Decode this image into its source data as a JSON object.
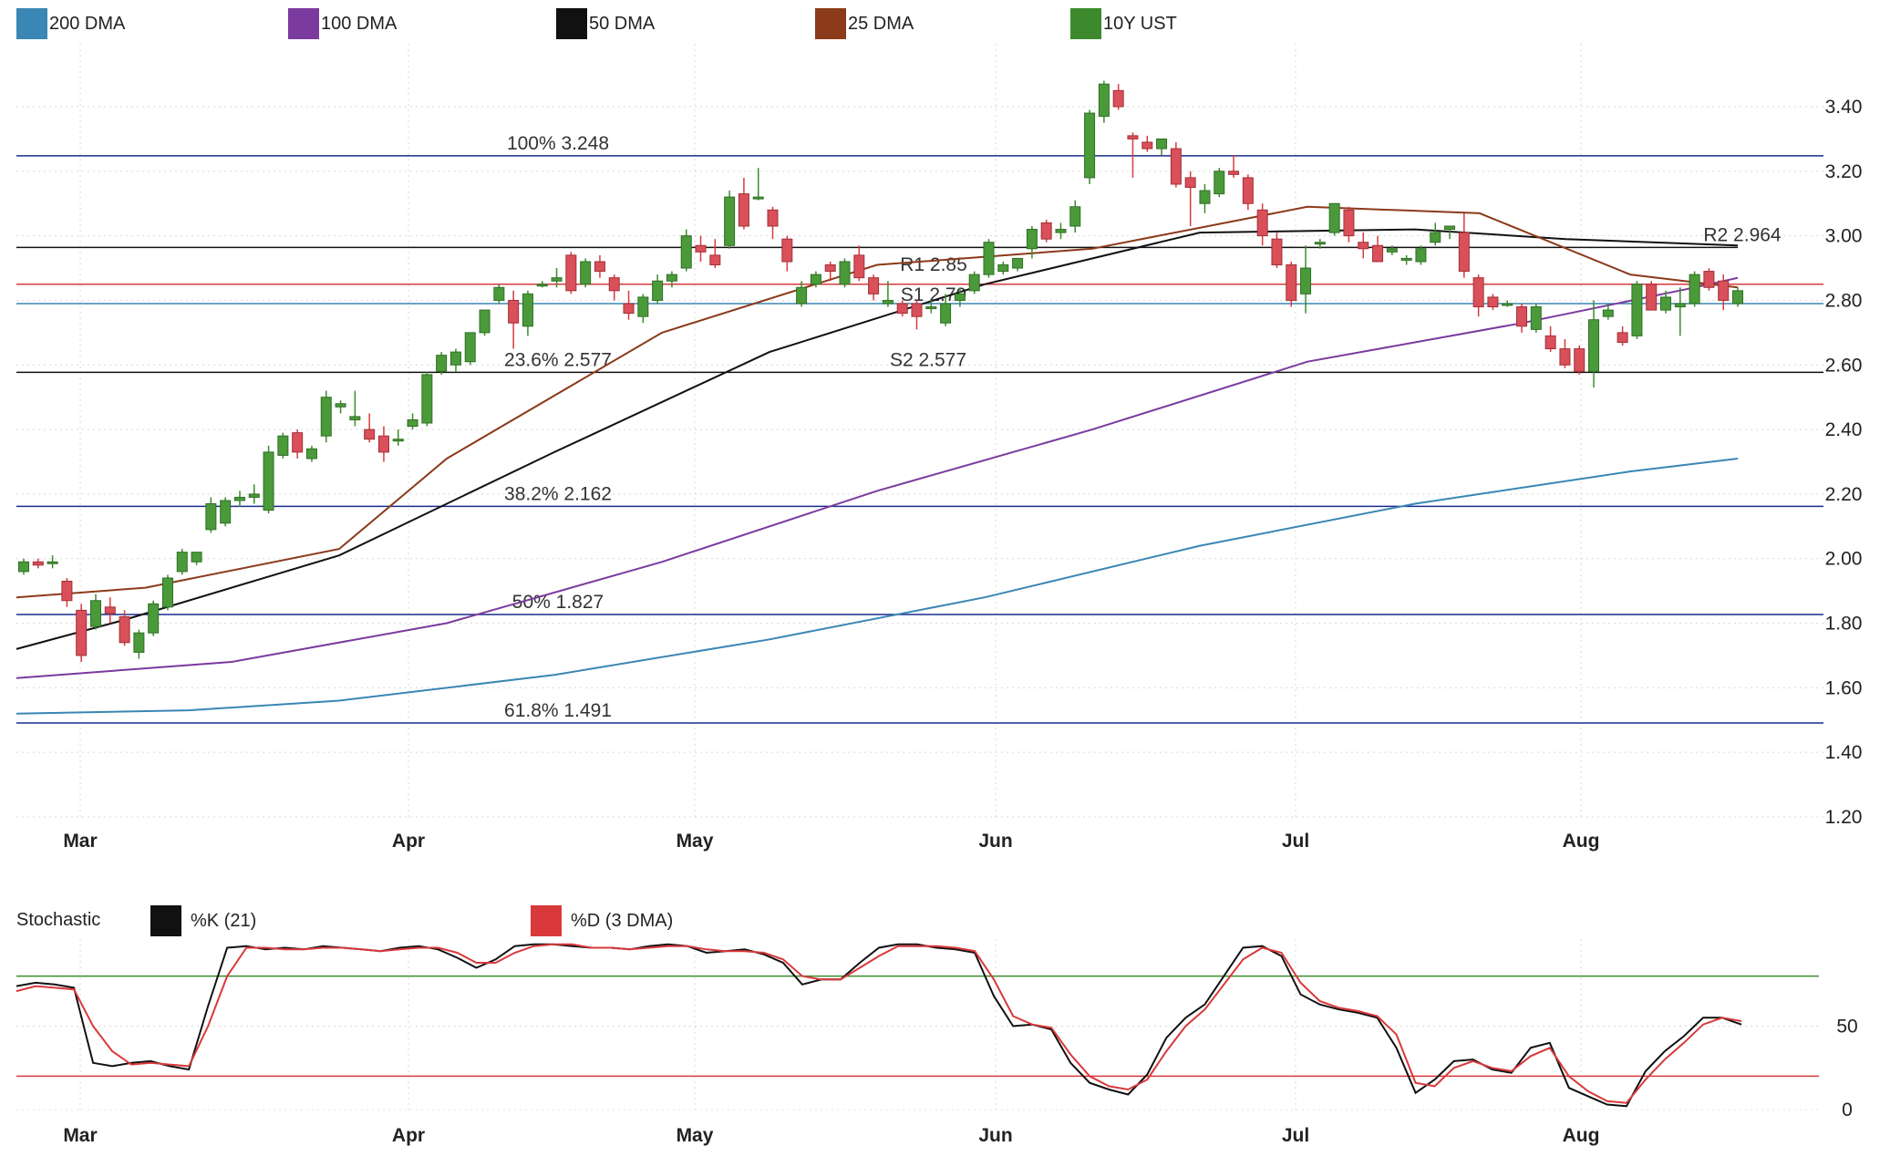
{
  "legend": [
    {
      "label": "200 DMA",
      "color": "#3a86b4"
    },
    {
      "label": "100 DMA",
      "color": "#7b3a9e"
    },
    {
      "label": "50 DMA",
      "color": "#111111"
    },
    {
      "label": "25 DMA",
      "color": "#8b3a1a"
    },
    {
      "label": "10Y UST",
      "color": "#3d8a2e"
    }
  ],
  "stoch_legend": {
    "title": "Stochastic",
    "items": [
      {
        "label": "%K (21)",
        "color": "#111111"
      },
      {
        "label": "%D (3 DMA)",
        "color": "#d9393b"
      }
    ]
  },
  "chart_data": [
    {
      "type": "candlestick",
      "series_name": "10Y UST",
      "x_axis_months": [
        "Mar",
        "Apr",
        "May",
        "Jun",
        "Jul",
        "Aug"
      ],
      "y_ticks": [
        "1.20",
        "1.40",
        "1.60",
        "1.80",
        "2.00",
        "2.20",
        "2.40",
        "2.60",
        "2.80",
        "3.00",
        "3.20",
        "3.40"
      ],
      "ylim": [
        1.2,
        3.5
      ],
      "grid": true,
      "reference_lines": [
        {
          "label": "100% 3.248",
          "value": 3.248,
          "color": "#1a2c8c"
        },
        {
          "label": "23.6% 2.577",
          "value": 2.577,
          "color": "#111111"
        },
        {
          "label": "38.2% 2.162",
          "value": 2.162,
          "color": "#1a2c8c"
        },
        {
          "label": "50% 1.827",
          "value": 1.827,
          "color": "#1a2c8c"
        },
        {
          "label": "61.8% 1.491",
          "value": 1.491,
          "color": "#1a2c8c"
        },
        {
          "label": "R1 2.85",
          "value": 2.85,
          "color": "#d9393b"
        },
        {
          "label": "S1 2.79",
          "value": 2.79,
          "color": "#3a86b4"
        },
        {
          "label": "S2 2.577",
          "value": 2.577,
          "color": "#111111"
        },
        {
          "label": "R2 2.964",
          "value": 2.964,
          "color": "#111111"
        }
      ],
      "candles": [
        [
          1.96,
          2.0,
          1.95,
          1.99
        ],
        [
          1.99,
          2.0,
          1.97,
          1.98
        ],
        [
          1.99,
          2.01,
          1.97,
          1.99
        ],
        [
          1.93,
          1.94,
          1.85,
          1.87
        ],
        [
          1.84,
          1.86,
          1.68,
          1.7
        ],
        [
          1.79,
          1.89,
          1.78,
          1.87
        ],
        [
          1.85,
          1.88,
          1.8,
          1.83
        ],
        [
          1.82,
          1.84,
          1.73,
          1.74
        ],
        [
          1.71,
          1.78,
          1.69,
          1.77
        ],
        [
          1.77,
          1.87,
          1.76,
          1.86
        ],
        [
          1.85,
          1.95,
          1.84,
          1.94
        ],
        [
          1.96,
          2.03,
          1.95,
          2.02
        ],
        [
          1.99,
          2.02,
          1.98,
          2.02
        ],
        [
          2.09,
          2.19,
          2.08,
          2.17
        ],
        [
          2.11,
          2.19,
          2.1,
          2.18
        ],
        [
          2.18,
          2.21,
          2.16,
          2.19
        ],
        [
          2.19,
          2.23,
          2.17,
          2.2
        ],
        [
          2.15,
          2.35,
          2.14,
          2.33
        ],
        [
          2.32,
          2.39,
          2.31,
          2.38
        ],
        [
          2.39,
          2.4,
          2.31,
          2.33
        ],
        [
          2.31,
          2.35,
          2.3,
          2.34
        ],
        [
          2.38,
          2.52,
          2.36,
          2.5
        ],
        [
          2.47,
          2.49,
          2.45,
          2.48
        ],
        [
          2.43,
          2.52,
          2.41,
          2.44
        ],
        [
          2.4,
          2.45,
          2.36,
          2.37
        ],
        [
          2.38,
          2.41,
          2.3,
          2.33
        ],
        [
          2.37,
          2.4,
          2.35,
          2.37
        ],
        [
          2.41,
          2.45,
          2.4,
          2.43
        ],
        [
          2.42,
          2.58,
          2.41,
          2.57
        ],
        [
          2.58,
          2.64,
          2.57,
          2.63
        ],
        [
          2.6,
          2.65,
          2.58,
          2.64
        ],
        [
          2.61,
          2.7,
          2.6,
          2.7
        ],
        [
          2.7,
          2.77,
          2.69,
          2.77
        ],
        [
          2.8,
          2.85,
          2.79,
          2.84
        ],
        [
          2.8,
          2.83,
          2.65,
          2.73
        ],
        [
          2.72,
          2.83,
          2.69,
          2.82
        ],
        [
          2.85,
          2.86,
          2.84,
          2.85
        ],
        [
          2.86,
          2.9,
          2.84,
          2.87
        ],
        [
          2.94,
          2.95,
          2.82,
          2.83
        ],
        [
          2.85,
          2.93,
          2.84,
          2.92
        ],
        [
          2.92,
          2.94,
          2.87,
          2.89
        ],
        [
          2.87,
          2.88,
          2.8,
          2.83
        ],
        [
          2.79,
          2.83,
          2.74,
          2.76
        ],
        [
          2.75,
          2.82,
          2.73,
          2.81
        ],
        [
          2.8,
          2.88,
          2.79,
          2.86
        ],
        [
          2.86,
          2.89,
          2.84,
          2.88
        ],
        [
          2.9,
          3.02,
          2.89,
          3.0
        ],
        [
          2.97,
          3.0,
          2.92,
          2.95
        ],
        [
          2.94,
          2.99,
          2.9,
          2.91
        ],
        [
          2.97,
          3.14,
          2.96,
          3.12
        ],
        [
          3.13,
          3.18,
          3.02,
          3.03
        ],
        [
          3.12,
          3.21,
          3.11,
          3.12
        ],
        [
          3.08,
          3.09,
          2.99,
          3.03
        ],
        [
          2.99,
          3.0,
          2.89,
          2.92
        ],
        [
          2.79,
          2.86,
          2.78,
          2.84
        ],
        [
          2.85,
          2.89,
          2.84,
          2.88
        ],
        [
          2.91,
          2.92,
          2.86,
          2.89
        ],
        [
          2.85,
          2.93,
          2.84,
          2.92
        ],
        [
          2.94,
          2.97,
          2.86,
          2.87
        ],
        [
          2.87,
          2.88,
          2.8,
          2.82
        ],
        [
          2.79,
          2.86,
          2.78,
          2.8
        ],
        [
          2.79,
          2.8,
          2.75,
          2.76
        ],
        [
          2.79,
          2.8,
          2.71,
          2.75
        ],
        [
          2.78,
          2.8,
          2.76,
          2.78
        ],
        [
          2.73,
          2.82,
          2.72,
          2.79
        ],
        [
          2.8,
          2.84,
          2.78,
          2.82
        ],
        [
          2.83,
          2.89,
          2.82,
          2.88
        ],
        [
          2.88,
          2.99,
          2.87,
          2.98
        ],
        [
          2.89,
          2.92,
          2.88,
          2.91
        ],
        [
          2.9,
          2.93,
          2.89,
          2.93
        ],
        [
          2.96,
          3.03,
          2.93,
          3.02
        ],
        [
          3.04,
          3.05,
          2.98,
          2.99
        ],
        [
          3.01,
          3.04,
          2.99,
          3.02
        ],
        [
          3.03,
          3.11,
          3.01,
          3.09
        ],
        [
          3.18,
          3.39,
          3.16,
          3.38
        ],
        [
          3.37,
          3.48,
          3.35,
          3.47
        ],
        [
          3.45,
          3.47,
          3.39,
          3.4
        ],
        [
          3.31,
          3.32,
          3.18,
          3.3
        ],
        [
          3.29,
          3.31,
          3.26,
          3.27
        ],
        [
          3.27,
          3.3,
          3.25,
          3.3
        ],
        [
          3.27,
          3.29,
          3.15,
          3.16
        ],
        [
          3.18,
          3.2,
          3.03,
          3.15
        ],
        [
          3.1,
          3.16,
          3.07,
          3.14
        ],
        [
          3.13,
          3.21,
          3.12,
          3.2
        ],
        [
          3.2,
          3.25,
          3.18,
          3.19
        ],
        [
          3.18,
          3.19,
          3.08,
          3.1
        ],
        [
          3.08,
          3.1,
          2.97,
          3.0
        ],
        [
          2.99,
          3.01,
          2.9,
          2.91
        ],
        [
          2.91,
          2.92,
          2.78,
          2.8
        ],
        [
          2.82,
          2.97,
          2.76,
          2.9
        ],
        [
          2.98,
          2.99,
          2.96,
          2.98
        ],
        [
          3.01,
          3.1,
          3.0,
          3.1
        ],
        [
          3.08,
          3.09,
          2.98,
          3.0
        ],
        [
          2.98,
          3.01,
          2.93,
          2.96
        ],
        [
          2.97,
          3.0,
          2.92,
          2.92
        ],
        [
          2.95,
          2.97,
          2.94,
          2.96
        ],
        [
          2.93,
          2.94,
          2.91,
          2.93
        ],
        [
          2.92,
          2.97,
          2.91,
          2.96
        ],
        [
          2.98,
          3.04,
          2.97,
          3.01
        ],
        [
          3.02,
          3.03,
          2.99,
          3.03
        ],
        [
          3.01,
          3.07,
          2.87,
          2.89
        ],
        [
          2.87,
          2.88,
          2.75,
          2.78
        ],
        [
          2.81,
          2.82,
          2.77,
          2.78
        ],
        [
          2.79,
          2.8,
          2.78,
          2.79
        ],
        [
          2.78,
          2.79,
          2.7,
          2.72
        ],
        [
          2.71,
          2.79,
          2.7,
          2.78
        ],
        [
          2.69,
          2.72,
          2.64,
          2.65
        ],
        [
          2.65,
          2.68,
          2.59,
          2.6
        ],
        [
          2.65,
          2.66,
          2.57,
          2.58
        ],
        [
          2.58,
          2.8,
          2.53,
          2.74
        ],
        [
          2.75,
          2.79,
          2.74,
          2.77
        ],
        [
          2.7,
          2.72,
          2.66,
          2.67
        ],
        [
          2.69,
          2.86,
          2.68,
          2.85
        ],
        [
          2.85,
          2.86,
          2.77,
          2.77
        ],
        [
          2.77,
          2.83,
          2.76,
          2.81
        ],
        [
          2.78,
          2.84,
          2.69,
          2.79
        ],
        [
          2.79,
          2.89,
          2.78,
          2.88
        ],
        [
          2.89,
          2.9,
          2.83,
          2.84
        ],
        [
          2.86,
          2.88,
          2.77,
          2.8
        ],
        [
          2.79,
          2.84,
          2.78,
          2.83
        ]
      ],
      "moving_averages": {
        "200 DMA": [
          [
            0,
            1.52
          ],
          [
            0.08,
            1.53
          ],
          [
            0.15,
            1.56
          ],
          [
            0.25,
            1.64
          ],
          [
            0.35,
            1.75
          ],
          [
            0.45,
            1.88
          ],
          [
            0.55,
            2.04
          ],
          [
            0.65,
            2.17
          ],
          [
            0.75,
            2.27
          ],
          [
            0.8,
            2.31
          ]
        ],
        "100 DMA": [
          [
            0,
            1.63
          ],
          [
            0.1,
            1.68
          ],
          [
            0.2,
            1.8
          ],
          [
            0.3,
            1.99
          ],
          [
            0.4,
            2.21
          ],
          [
            0.5,
            2.4
          ],
          [
            0.6,
            2.61
          ],
          [
            0.7,
            2.73
          ],
          [
            0.78,
            2.84
          ],
          [
            0.8,
            2.87
          ]
        ],
        "50 DMA": [
          [
            0,
            1.72
          ],
          [
            0.05,
            1.81
          ],
          [
            0.15,
            2.01
          ],
          [
            0.25,
            2.33
          ],
          [
            0.35,
            2.64
          ],
          [
            0.45,
            2.85
          ],
          [
            0.55,
            3.01
          ],
          [
            0.65,
            3.02
          ],
          [
            0.72,
            2.99
          ],
          [
            0.8,
            2.97
          ]
        ],
        "25 DMA": [
          [
            0,
            1.88
          ],
          [
            0.06,
            1.91
          ],
          [
            0.15,
            2.03
          ],
          [
            0.2,
            2.31
          ],
          [
            0.3,
            2.7
          ],
          [
            0.4,
            2.91
          ],
          [
            0.5,
            2.96
          ],
          [
            0.6,
            3.09
          ],
          [
            0.68,
            3.07
          ],
          [
            0.75,
            2.88
          ],
          [
            0.8,
            2.84
          ]
        ]
      }
    },
    {
      "type": "line",
      "title": "Stochastic",
      "y_ticks": [
        "0",
        "50"
      ],
      "ylim": [
        0,
        100
      ],
      "overbought": 80,
      "oversold": 20,
      "x_axis_months": [
        "Mar",
        "Apr",
        "May",
        "Jun",
        "Jul",
        "Aug"
      ],
      "series": [
        {
          "name": "%K (21)",
          "values": [
            74,
            76,
            75,
            73,
            28,
            26,
            28,
            29,
            26,
            24,
            62,
            97,
            98,
            96,
            97,
            96,
            98,
            97,
            96,
            95,
            97,
            98,
            96,
            91,
            85,
            90,
            98,
            99,
            99,
            98,
            97,
            97,
            96,
            98,
            99,
            98,
            94,
            95,
            96,
            93,
            88,
            75,
            78,
            78,
            88,
            97,
            99,
            99,
            97,
            96,
            94,
            68,
            50,
            51,
            48,
            28,
            16,
            12,
            9,
            21,
            43,
            55,
            63,
            80,
            97,
            98,
            92,
            69,
            63,
            60,
            58,
            55,
            37,
            10,
            18,
            29,
            30,
            24,
            22,
            37,
            40,
            13,
            8,
            3,
            2,
            23,
            35,
            44,
            55,
            55,
            51
          ]
        },
        {
          "name": "%D (3 DMA)",
          "values": [
            71,
            74,
            73,
            72,
            50,
            35,
            27,
            28,
            27,
            26,
            50,
            80,
            97,
            97,
            96,
            96,
            97,
            97,
            96,
            95,
            96,
            97,
            97,
            94,
            88,
            88,
            94,
            98,
            99,
            99,
            97,
            97,
            96,
            97,
            98,
            98,
            96,
            95,
            95,
            94,
            90,
            80,
            78,
            78,
            85,
            92,
            98,
            98,
            98,
            97,
            95,
            78,
            56,
            51,
            49,
            33,
            20,
            14,
            12,
            18,
            35,
            50,
            60,
            75,
            90,
            97,
            94,
            76,
            65,
            61,
            59,
            56,
            45,
            16,
            14,
            25,
            29,
            25,
            23,
            32,
            37,
            20,
            11,
            5,
            4,
            18,
            30,
            40,
            51,
            55,
            53
          ]
        }
      ]
    }
  ]
}
